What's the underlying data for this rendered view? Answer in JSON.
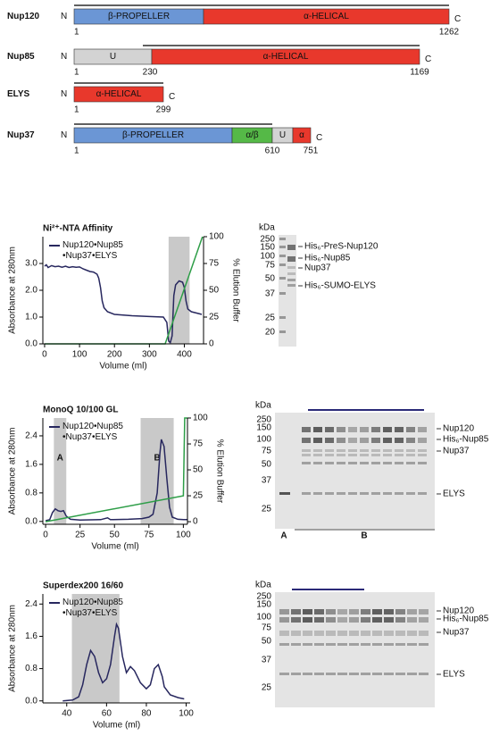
{
  "domains": {
    "n_terminus": "N",
    "c_terminus": "C",
    "proteins": [
      {
        "name": "Nup120",
        "segments": [
          "β-PROPELLER",
          "α-HELICAL"
        ],
        "residues": [
          1,
          1262
        ]
      },
      {
        "name": "Nup85",
        "segments": [
          "U",
          "α-HELICAL"
        ],
        "residues": [
          1,
          230,
          1169
        ]
      },
      {
        "name": "ELYS",
        "segments": [
          "α-HELICAL"
        ],
        "residues": [
          1,
          299
        ]
      },
      {
        "name": "Nup37",
        "segments": [
          "β-PROPELLER",
          "α/β",
          "U",
          "α"
        ],
        "residues": [
          1,
          610,
          751
        ]
      }
    ]
  },
  "chart_data": [
    {
      "type": "line",
      "title": "Ni²⁺-NTA Affinity",
      "xlabel": "Volume (ml)",
      "ylabel": "Absorbance at 280nm",
      "y2label": "% Elution Buffer",
      "xlim": [
        -5,
        455
      ],
      "xticks": [
        0,
        100,
        200,
        300,
        400
      ],
      "ylim": [
        0,
        4
      ],
      "yticks": [
        {
          "value": 0,
          "label": "0.0"
        },
        {
          "value": 1,
          "label": "1.0"
        },
        {
          "value": 2,
          "label": "2.0"
        },
        {
          "value": 3,
          "label": "3.0"
        }
      ],
      "y2lim": [
        0,
        100
      ],
      "y2ticks": [
        0,
        25,
        50,
        75,
        100
      ],
      "spans": [
        {
          "range": [
            355,
            415
          ]
        }
      ],
      "legend": "upper left",
      "series": [
        {
          "name": "Nup120•Nup85 •Nup37•ELYS",
          "color": "#27275e",
          "x": [
            0,
            5,
            10,
            20,
            30,
            40,
            50,
            60,
            70,
            80,
            90,
            100,
            110,
            120,
            130,
            140,
            150,
            155,
            160,
            165,
            170,
            180,
            200,
            250,
            300,
            340,
            350,
            355,
            360,
            365,
            370,
            375,
            385,
            395,
            400,
            405,
            410,
            420,
            435,
            450
          ],
          "values": [
            2.9,
            2.95,
            2.85,
            2.92,
            2.88,
            2.9,
            2.86,
            2.9,
            2.85,
            2.88,
            2.86,
            2.87,
            2.8,
            2.75,
            2.7,
            2.68,
            2.6,
            2.45,
            2.1,
            1.6,
            1.35,
            1.2,
            1.1,
            1.05,
            1.02,
            1.0,
            0.8,
            0.1,
            0.05,
            0.3,
            1.8,
            2.2,
            2.35,
            2.3,
            2.1,
            1.6,
            1.3,
            1.2,
            1.15,
            1.1
          ]
        },
        {
          "color": "#2e9e48",
          "axis": "y2",
          "x": [
            0,
            345,
            452
          ],
          "values": [
            0,
            0,
            100
          ]
        }
      ]
    },
    {
      "type": "line",
      "title": "MonoQ 10/100 GL",
      "xlabel": "Volume (ml)",
      "ylabel": "Absorbance at 280nm",
      "y2label": "% Elution Buffer",
      "xlim": [
        -2,
        103
      ],
      "xticks": [
        0,
        25,
        50,
        75,
        100
      ],
      "ylim": [
        -0.08,
        2.9
      ],
      "yticks": [
        {
          "value": 0,
          "label": "0.0"
        },
        0.8,
        1.6,
        2.4
      ],
      "y2lim": [
        -2.5,
        100
      ],
      "y2ticks": [
        0,
        25,
        50,
        75,
        100
      ],
      "spans": [
        {
          "range": [
            6,
            15
          ],
          "label": "A"
        },
        {
          "range": [
            69,
            93
          ],
          "label": "B"
        }
      ],
      "legend": "upper left",
      "series": [
        {
          "name": "Nup120•Nup85 •Nup37•ELYS",
          "color": "#27275e",
          "x": [
            0,
            3,
            5,
            7,
            9,
            11,
            13,
            15,
            18,
            25,
            40,
            45,
            47,
            60,
            70,
            75,
            78,
            81,
            83,
            84,
            86,
            88,
            90,
            92,
            96,
            100,
            103
          ],
          "values": [
            0.02,
            0.05,
            0.25,
            0.35,
            0.3,
            0.28,
            0.3,
            0.15,
            0.06,
            0.04,
            0.05,
            0.1,
            0.05,
            0.06,
            0.08,
            0.12,
            0.2,
            0.8,
            1.9,
            2.3,
            2.1,
            1.2,
            0.4,
            0.12,
            0.06,
            0.05,
            0.05
          ]
        },
        {
          "color": "#2e9e48",
          "axis": "y2",
          "x": [
            0,
            100,
            101,
            103
          ],
          "values": [
            0,
            25,
            100,
            100
          ]
        }
      ]
    },
    {
      "type": "line",
      "title": "Superdex200 16/60",
      "xlabel": "Volume (ml)",
      "ylabel": "Absorbance at 280nm",
      "xlim": [
        28,
        102
      ],
      "xticks": [
        40,
        60,
        80,
        100
      ],
      "ylim": [
        -0.05,
        2.65
      ],
      "yticks": [
        {
          "value": 0,
          "label": "0.0"
        },
        0.8,
        1.6,
        2.4
      ],
      "spans": [
        {
          "range": [
            42.6,
            66.5
          ]
        }
      ],
      "legend": "upper left",
      "series": [
        {
          "name": "Nup120•Nup85 •Nup37•ELYS",
          "color": "#27275e",
          "x": [
            38,
            43,
            46,
            48,
            50,
            52,
            54,
            56,
            58,
            60,
            62,
            64,
            65,
            66,
            68,
            70,
            72,
            74,
            77,
            80,
            82,
            84,
            86,
            88,
            89,
            92,
            96,
            99
          ],
          "values": [
            0,
            0.02,
            0.1,
            0.4,
            0.9,
            1.25,
            1.1,
            0.7,
            0.45,
            0.55,
            0.9,
            1.6,
            1.9,
            1.8,
            1.1,
            0.7,
            0.85,
            0.75,
            0.45,
            0.3,
            0.4,
            0.8,
            0.9,
            0.6,
            0.35,
            0.15,
            0.08,
            0.05
          ]
        }
      ]
    }
  ],
  "gels": [
    {
      "unit": "kDa",
      "markers": [
        250,
        150,
        100,
        75,
        50,
        37,
        25,
        20
      ],
      "bands": [
        "His₆-PreS-Nup120",
        "His₆-Nup85",
        "Nup37",
        "His₆-SUMO-ELYS"
      ]
    },
    {
      "unit": "kDa",
      "markers": [
        250,
        150,
        100,
        75,
        50,
        37,
        25
      ],
      "bands": [
        "Nup120",
        "His₆-Nup85",
        "Nup37",
        "ELYS"
      ],
      "lanes": [
        "A",
        "B"
      ]
    },
    {
      "unit": "kDa",
      "markers": [
        250,
        150,
        100,
        75,
        50,
        37,
        25
      ],
      "bands": [
        "Nup120",
        "His₆-Nup85",
        "Nup37",
        "ELYS"
      ]
    }
  ]
}
